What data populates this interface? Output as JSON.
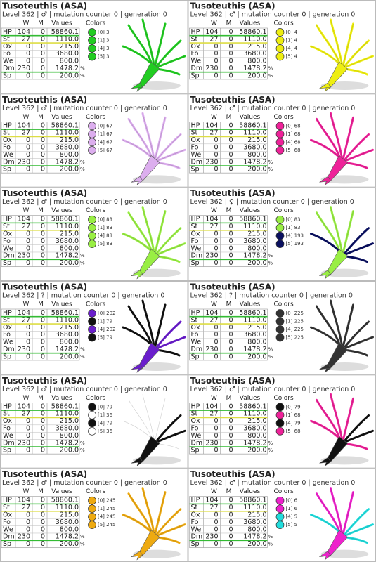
{
  "cards": [
    {
      "title": "Tusoteuthis (ASA)",
      "subtitle": "Level 362 | ♂ | mutation counter 0 | generation 0",
      "headers": [
        "W",
        "M",
        "Values",
        "Colors"
      ],
      "rows": [
        [
          "HP",
          "104",
          "0",
          "58860.1"
        ],
        [
          "St",
          "27",
          "0",
          "1110.0"
        ],
        [
          "Ox",
          "0",
          "0",
          "215.0"
        ],
        [
          "Fo",
          "0",
          "0",
          "3680.0"
        ],
        [
          "We",
          "0",
          "0",
          "800.0"
        ],
        [
          "Dm",
          "230",
          "0",
          "1478.2",
          "%"
        ],
        [
          "Sp",
          "0",
          "0",
          "200.0",
          "%"
        ]
      ],
      "colors": [
        {
          "label": "[0] 3",
          "color": "#22cc22"
        },
        {
          "label": "[1] 3",
          "color": "#22cc22"
        },
        {
          "label": "[4] 3",
          "color": "#22cc22"
        },
        {
          "label": "[5] 3",
          "color": "#22cc22"
        }
      ]
    },
    {
      "title": "Tusoteuthis (ASA)",
      "subtitle": "Level 362 | ♂ | mutation counter 0 | generation 0",
      "headers": [
        "W",
        "M",
        "Values",
        "Colors"
      ],
      "rows": [
        [
          "HP",
          "104",
          "0",
          "58860.1"
        ],
        [
          "St",
          "27",
          "0",
          "1110.0"
        ],
        [
          "Ox",
          "0",
          "0",
          "215.0"
        ],
        [
          "Fo",
          "0",
          "0",
          "3680.0"
        ],
        [
          "We",
          "0",
          "0",
          "800.0"
        ],
        [
          "Dm",
          "230",
          "0",
          "1478.2",
          "%"
        ],
        [
          "Sp",
          "0",
          "0",
          "200.0",
          "%"
        ]
      ],
      "colors": [
        {
          "label": "[0] 4",
          "color": "#eeee11"
        },
        {
          "label": "[1] 4",
          "color": "#eeee11"
        },
        {
          "label": "[4] 4",
          "color": "#eeee11"
        },
        {
          "label": "[5] 4",
          "color": "#eeee11"
        }
      ]
    },
    {
      "title": "Tusoteuthis (ASA)",
      "subtitle": "Level 362 | ♂ | mutation counter 0 | generation 0",
      "headers": [
        "W",
        "M",
        "Values",
        "Colors"
      ],
      "rows": [
        [
          "HP",
          "104",
          "0",
          "58860.1"
        ],
        [
          "St",
          "27",
          "0",
          "1110.0"
        ],
        [
          "Ox",
          "0",
          "0",
          "215.0"
        ],
        [
          "Fo",
          "0",
          "0",
          "3680.0"
        ],
        [
          "We",
          "0",
          "0",
          "800.0"
        ],
        [
          "Dm",
          "230",
          "0",
          "1478.2",
          "%"
        ],
        [
          "Sp",
          "0",
          "0",
          "200.0",
          "%"
        ]
      ],
      "colors": [
        {
          "label": "[0] 67",
          "color": "#dcaeee"
        },
        {
          "label": "[1] 67",
          "color": "#dcaeee"
        },
        {
          "label": "[4] 67",
          "color": "#dcaeee"
        },
        {
          "label": "[5] 67",
          "color": "#dcaeee"
        }
      ]
    },
    {
      "title": "Tusoteuthis (ASA)",
      "subtitle": "Level 362 | ♂ | mutation counter 0 | generation 0",
      "headers": [
        "W",
        "M",
        "Values",
        "Colors"
      ],
      "rows": [
        [
          "HP",
          "104",
          "0",
          "58860.1"
        ],
        [
          "St",
          "27",
          "0",
          "1110.0"
        ],
        [
          "Ox",
          "0",
          "0",
          "215.0"
        ],
        [
          "Fo",
          "0",
          "0",
          "3680.0"
        ],
        [
          "We",
          "0",
          "0",
          "800.0"
        ],
        [
          "Dm",
          "230",
          "0",
          "1478.2",
          "%"
        ],
        [
          "Sp",
          "0",
          "0",
          "200.0",
          "%"
        ]
      ],
      "colors": [
        {
          "label": "[0] 68",
          "color": "#ee2299"
        },
        {
          "label": "[1] 68",
          "color": "#ee2299"
        },
        {
          "label": "[4] 68",
          "color": "#ee2299"
        },
        {
          "label": "[5] 68",
          "color": "#ee2299"
        }
      ]
    },
    {
      "title": "Tusoteuthis (ASA)",
      "subtitle": "Level 362 | ♂ | mutation counter 0 | generation 0",
      "headers": [
        "W",
        "M",
        "Values",
        "Colors"
      ],
      "rows": [
        [
          "HP",
          "104",
          "0",
          "58860.1"
        ],
        [
          "St",
          "27",
          "0",
          "1110.0"
        ],
        [
          "Ox",
          "0",
          "0",
          "215.0"
        ],
        [
          "Fo",
          "0",
          "0",
          "3680.0"
        ],
        [
          "We",
          "0",
          "0",
          "800.0"
        ],
        [
          "Dm",
          "230",
          "0",
          "1478.2",
          "%"
        ],
        [
          "Sp",
          "0",
          "0",
          "200.0",
          "%"
        ]
      ],
      "colors": [
        {
          "label": "[0] 83",
          "color": "#99ee44"
        },
        {
          "label": "[1] 83",
          "color": "#99ee44"
        },
        {
          "label": "[4] 83",
          "color": "#99ee44"
        },
        {
          "label": "[5] 83",
          "color": "#99ee44"
        }
      ]
    },
    {
      "title": "Tusoteuthis (ASA)",
      "subtitle": "Level 362 | ♀ | mutation counter 0 | generation 0",
      "headers": [
        "W",
        "M",
        "Values",
        "Colors"
      ],
      "rows": [
        [
          "HP",
          "104",
          "0",
          "58860.1"
        ],
        [
          "St",
          "27",
          "0",
          "1110.0"
        ],
        [
          "Ox",
          "0",
          "0",
          "215.0"
        ],
        [
          "Fo",
          "0",
          "0",
          "3680.0"
        ],
        [
          "We",
          "0",
          "0",
          "800.0"
        ],
        [
          "Dm",
          "230",
          "0",
          "1478.2",
          "%"
        ],
        [
          "Sp",
          "0",
          "0",
          "200.0",
          "%"
        ]
      ],
      "colors": [
        {
          "label": "[0] 83",
          "color": "#99ee44"
        },
        {
          "label": "[1] 83",
          "color": "#99ee44"
        },
        {
          "label": "[4] 193",
          "color": "#0a1060"
        },
        {
          "label": "[5] 193",
          "color": "#0a1060"
        }
      ]
    },
    {
      "title": "Tusoteuthis (ASA)",
      "subtitle": "Level 362 | ? | mutation counter 0 | generation 0",
      "headers": [
        "W",
        "M",
        "Values",
        "Colors"
      ],
      "rows": [
        [
          "HP",
          "104",
          "0",
          "58860.1"
        ],
        [
          "St",
          "27",
          "0",
          "1110.0"
        ],
        [
          "Ox",
          "0",
          "0",
          "215.0"
        ],
        [
          "Fo",
          "0",
          "0",
          "3680.0"
        ],
        [
          "We",
          "0",
          "0",
          "800.0"
        ],
        [
          "Dm",
          "230",
          "0",
          "1478.2",
          "%"
        ],
        [
          "Sp",
          "0",
          "0",
          "200.0",
          "%"
        ]
      ],
      "colors": [
        {
          "label": "[0] 202",
          "color": "#6a1ecc"
        },
        {
          "label": "[1] 79",
          "color": "#111111"
        },
        {
          "label": "[4] 202",
          "color": "#6a1ecc"
        },
        {
          "label": "[5] 79",
          "color": "#111111"
        }
      ]
    },
    {
      "title": "Tusoteuthis (ASA)",
      "subtitle": "Level 362 | ? | mutation counter 0 | generation 0",
      "headers": [
        "W",
        "M",
        "Values",
        "Colors"
      ],
      "rows": [
        [
          "HP",
          "104",
          "0",
          "58860.1"
        ],
        [
          "St",
          "27",
          "0",
          "1110.0"
        ],
        [
          "Ox",
          "0",
          "0",
          "215.0"
        ],
        [
          "Fo",
          "0",
          "0",
          "3680.0"
        ],
        [
          "We",
          "0",
          "0",
          "800.0"
        ],
        [
          "Dm",
          "230",
          "0",
          "1478.2",
          "%"
        ],
        [
          "Sp",
          "0",
          "0",
          "200.0",
          "%"
        ]
      ],
      "colors": [
        {
          "label": "[0] 225",
          "color": "#333333"
        },
        {
          "label": "[1] 225",
          "color": "#333333"
        },
        {
          "label": "[4] 225",
          "color": "#333333"
        },
        {
          "label": "[5] 225",
          "color": "#333333"
        }
      ]
    },
    {
      "title": "Tusoteuthis (ASA)",
      "subtitle": "Level 362 | ♂ | mutation counter 0 | generation 0",
      "headers": [
        "W",
        "M",
        "Values",
        "Colors"
      ],
      "rows": [
        [
          "HP",
          "104",
          "0",
          "58860.1"
        ],
        [
          "St",
          "27",
          "0",
          "1110.0"
        ],
        [
          "Ox",
          "0",
          "0",
          "215.0"
        ],
        [
          "Fo",
          "0",
          "0",
          "3680.0"
        ],
        [
          "We",
          "0",
          "0",
          "800.0"
        ],
        [
          "Dm",
          "230",
          "0",
          "1478.2",
          "%"
        ],
        [
          "Sp",
          "0",
          "0",
          "200.0",
          "%"
        ]
      ],
      "colors": [
        {
          "label": "[0] 79",
          "color": "#111111"
        },
        {
          "label": "[1] 36",
          "color": "#ffffff"
        },
        {
          "label": "[4] 79",
          "color": "#111111"
        },
        {
          "label": "[5] 36",
          "color": "#ffffff"
        }
      ]
    },
    {
      "title": "Tusoteuthis (ASA)",
      "subtitle": "Level 362 | ♂ | mutation counter 0 | generation 0",
      "headers": [
        "W",
        "M",
        "Values",
        "Colors"
      ],
      "rows": [
        [
          "HP",
          "104",
          "0",
          "58860.1"
        ],
        [
          "St",
          "27",
          "0",
          "1110.0"
        ],
        [
          "Ox",
          "0",
          "0",
          "215.0"
        ],
        [
          "Fo",
          "0",
          "0",
          "3680.0"
        ],
        [
          "We",
          "0",
          "0",
          "800.0"
        ],
        [
          "Dm",
          "230",
          "0",
          "1478.2",
          "%"
        ],
        [
          "Sp",
          "0",
          "0",
          "200.0",
          "%"
        ]
      ],
      "colors": [
        {
          "label": "[0] 79",
          "color": "#111111"
        },
        {
          "label": "[1] 68",
          "color": "#ee2299"
        },
        {
          "label": "[4] 79",
          "color": "#111111"
        },
        {
          "label": "[5] 68",
          "color": "#ee2299"
        }
      ]
    },
    {
      "title": "Tusoteuthis (ASA)",
      "subtitle": "Level 362 | ♂ | mutation counter 0 | generation 0",
      "headers": [
        "W",
        "M",
        "Values",
        "Colors"
      ],
      "rows": [
        [
          "HP",
          "104",
          "0",
          "58860.1"
        ],
        [
          "St",
          "27",
          "0",
          "1110.0"
        ],
        [
          "Ox",
          "0",
          "0",
          "215.0"
        ],
        [
          "Fo",
          "0",
          "0",
          "3680.0"
        ],
        [
          "We",
          "0",
          "0",
          "800.0"
        ],
        [
          "Dm",
          "230",
          "0",
          "1478.2",
          "%"
        ],
        [
          "Sp",
          "0",
          "0",
          "200.0",
          "%"
        ]
      ],
      "colors": [
        {
          "label": "[0] 245",
          "color": "#eeaa11"
        },
        {
          "label": "[1] 245",
          "color": "#eeaa11"
        },
        {
          "label": "[4] 245",
          "color": "#eeaa11"
        },
        {
          "label": "[5] 245",
          "color": "#eeaa11"
        }
      ]
    },
    {
      "title": "Tusoteuthis (ASA)",
      "subtitle": "Level 362 | ♂ | mutation counter 0 | generation 0",
      "headers": [
        "W",
        "M",
        "Values",
        "Colors"
      ],
      "rows": [
        [
          "HP",
          "104",
          "0",
          "58860.1"
        ],
        [
          "St",
          "27",
          "0",
          "1110.0"
        ],
        [
          "Ox",
          "0",
          "0",
          "215.0"
        ],
        [
          "Fo",
          "0",
          "0",
          "3680.0"
        ],
        [
          "We",
          "0",
          "0",
          "800.0"
        ],
        [
          "Dm",
          "230",
          "0",
          "1478.2",
          "%"
        ],
        [
          "Sp",
          "0",
          "0",
          "200.0",
          "%"
        ]
      ],
      "colors": [
        {
          "label": "[0] 6",
          "color": "#ee22cc"
        },
        {
          "label": "[1] 6",
          "color": "#ee22cc"
        },
        {
          "label": "[4] 5",
          "color": "#22dddd"
        },
        {
          "label": "[5] 5",
          "color": "#22dddd"
        }
      ]
    }
  ]
}
